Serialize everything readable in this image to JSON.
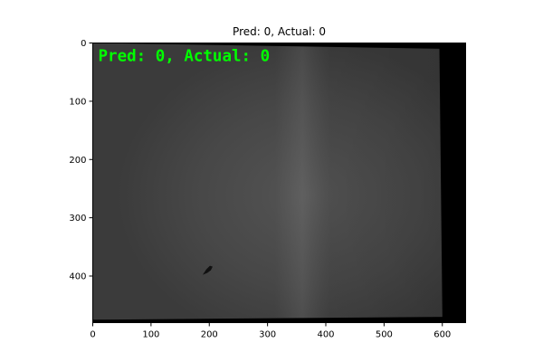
{
  "chart_data": {
    "type": "image",
    "title": "Pred: 0, Actual: 0",
    "overlay_text": "Pred: 0, Actual: 0",
    "overlay_color": "#00ff00",
    "x_ticks": [
      0,
      100,
      200,
      300,
      400,
      500,
      600
    ],
    "y_ticks": [
      0,
      100,
      200,
      300,
      400
    ],
    "x_range": [
      0,
      640
    ],
    "y_range": [
      0,
      480
    ],
    "y_axis_inverted": true,
    "grid": false,
    "image_region": {
      "polygon": [
        [
          0,
          0
        ],
        [
          595,
          10
        ],
        [
          600,
          470
        ],
        [
          0,
          475
        ]
      ],
      "background_outside": "#000000",
      "base_color": "#414141",
      "light_band_color": "#555555"
    },
    "dark_spot": {
      "x": 198,
      "y": 390
    }
  }
}
